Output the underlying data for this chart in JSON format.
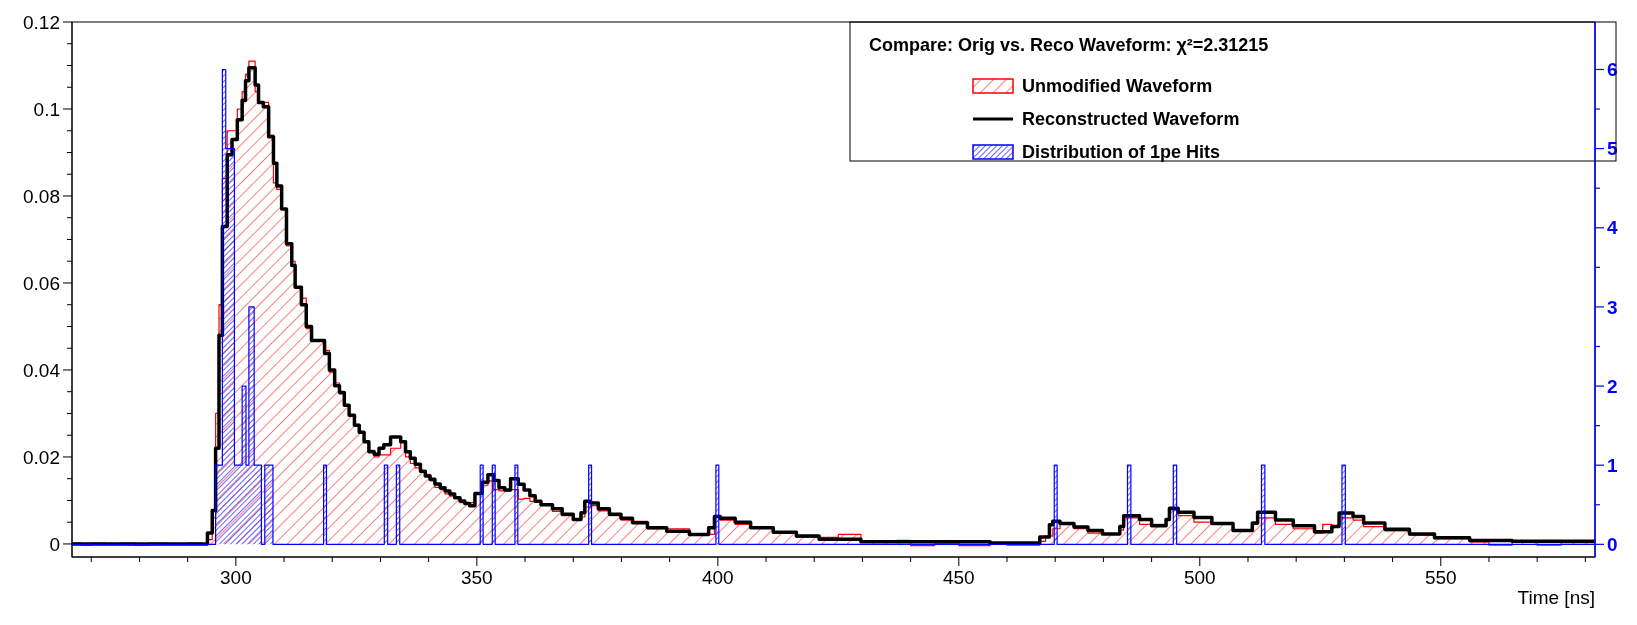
{
  "chart_data": {
    "type": "step",
    "xlabel": "Time [ns]",
    "legend_title": "Compare: Orig vs. Reco Waveform: χ²=2.31215",
    "legend": "top right",
    "xlim": [
      266,
      582
    ],
    "ylim": [
      -0.003,
      0.12
    ],
    "y2lim": [
      -0.16,
      6.6
    ],
    "xticks": [
      {
        "value": 270,
        "label": null
      },
      {
        "value": 280,
        "label": null
      },
      {
        "value": 290,
        "label": null
      },
      300,
      {
        "value": 310,
        "label": null
      },
      {
        "value": 320,
        "label": null
      },
      {
        "value": 330,
        "label": null
      },
      {
        "value": 340,
        "label": null
      },
      350,
      {
        "value": 360,
        "label": null
      },
      {
        "value": 370,
        "label": null
      },
      {
        "value": 380,
        "label": null
      },
      {
        "value": 390,
        "label": null
      },
      400,
      {
        "value": 410,
        "label": null
      },
      {
        "value": 420,
        "label": null
      },
      {
        "value": 430,
        "label": null
      },
      {
        "value": 440,
        "label": null
      },
      450,
      {
        "value": 460,
        "label": null
      },
      {
        "value": 470,
        "label": null
      },
      {
        "value": 480,
        "label": null
      },
      {
        "value": 490,
        "label": null
      },
      500,
      {
        "value": 510,
        "label": null
      },
      {
        "value": 520,
        "label": null
      },
      {
        "value": 530,
        "label": null
      },
      {
        "value": 540,
        "label": null
      },
      550,
      {
        "value": 560,
        "label": null
      },
      {
        "value": 570,
        "label": null
      },
      {
        "value": 580,
        "label": null
      }
    ],
    "yticks": [
      0,
      {
        "value": 0.005,
        "label": null
      },
      {
        "value": 0.01,
        "label": null
      },
      {
        "value": 0.015,
        "label": null
      },
      0.02,
      {
        "value": 0.025,
        "label": null
      },
      {
        "value": 0.03,
        "label": null
      },
      {
        "value": 0.035,
        "label": null
      },
      0.04,
      {
        "value": 0.045,
        "label": null
      },
      {
        "value": 0.05,
        "label": null
      },
      {
        "value": 0.055,
        "label": null
      },
      0.06,
      {
        "value": 0.065,
        "label": null
      },
      {
        "value": 0.07,
        "label": null
      },
      {
        "value": 0.075,
        "label": null
      },
      0.08,
      {
        "value": 0.085,
        "label": null
      },
      {
        "value": 0.09,
        "label": null
      },
      {
        "value": 0.095,
        "label": null
      },
      0.1,
      {
        "value": 0.105,
        "label": null
      },
      {
        "value": 0.11,
        "label": null
      },
      {
        "value": 0.115,
        "label": null
      },
      0.12
    ],
    "y2ticks": [
      0,
      {
        "value": 0.5,
        "label": null
      },
      1,
      {
        "value": 1.5,
        "label": null
      },
      2,
      {
        "value": 2.5,
        "label": null
      },
      3,
      {
        "value": 3.5,
        "label": null
      },
      4,
      {
        "value": 4.5,
        "label": null
      },
      5,
      {
        "value": 5.5,
        "label": null
      },
      6
    ],
    "series": [
      {
        "name": "Unmodified Waveform",
        "type": "area",
        "color": "#ff0000",
        "x": [
          266,
          268,
          270,
          273,
          276,
          279,
          282,
          286,
          290,
          293,
          294.1,
          295.1,
          295.8,
          296.5,
          297.2,
          298.2,
          299.2,
          300.3,
          301.3,
          302.0,
          302.7,
          304.0,
          304.7,
          305.7,
          306.8,
          307.8,
          308.5,
          309.5,
          310.5,
          311.6,
          312.3,
          313.6,
          314.6,
          315.7,
          318.4,
          319.4,
          320.5,
          321.5,
          322.5,
          323.5,
          324.6,
          325.6,
          326.6,
          327.6,
          328.7,
          329.7,
          330.7,
          332.1,
          334.2,
          335.2,
          336.2,
          337.2,
          338.3,
          339.3,
          340.3,
          341.3,
          342.4,
          343.4,
          344.4,
          345.4,
          346.5,
          347.5,
          348.5,
          349.6,
          351.1,
          352.3,
          353.5,
          354.6,
          357.0,
          358.6,
          359.8,
          361.0,
          363.3,
          365.7,
          367.7,
          370.0,
          371.6,
          372.4,
          373.6,
          375.2,
          377.5,
          379.9,
          382.3,
          385.4,
          389.4,
          394.1,
          398.1,
          399.3,
          400.5,
          403.6,
          406.8,
          411.5,
          416.3,
          421.0,
          425.0,
          429.7,
          437.0,
          440.0,
          445.0,
          450.0,
          456.5,
          460.0,
          466.8,
          468.0,
          469.5,
          471.0,
          473.9,
          476.8,
          479.8,
          483.4,
          484.2,
          487.5,
          490.0,
          493.0,
          493.7,
          495.5,
          498.8,
          502.5,
          506.9,
          510.9,
          512.0,
          515.7,
          519.4,
          523.8,
          525.5,
          527.4,
          528.9,
          531.8,
          534.0,
          538.4,
          543.5,
          548.7,
          556.0,
          560.0,
          564.8,
          570.0,
          575.0,
          582
        ],
        "values": [
          0.0002,
          -0.0002,
          0.0002,
          0,
          0.0002,
          -0.0002,
          0.0002,
          0,
          0.0002,
          0,
          0.001,
          0.006,
          0.03,
          0.055,
          0.084,
          0.095,
          0.095,
          0.1,
          0.104,
          0.108,
          0.111,
          0.104,
          0.1015,
          0.1015,
          0.094,
          0.083,
          0.0815,
          0.077,
          0.0685,
          0.065,
          0.059,
          0.0565,
          0.0495,
          0.047,
          0.0445,
          0.0395,
          0.037,
          0.0345,
          0.032,
          0.0295,
          0.0275,
          0.0255,
          0.0235,
          0.0215,
          0.02,
          0.0205,
          0.0205,
          0.022,
          0.0235,
          0.02,
          0.0185,
          0.0175,
          0.0165,
          0.016,
          0.0145,
          0.013,
          0.0125,
          0.0115,
          0.011,
          0.0105,
          0.0095,
          0.0095,
          0.0095,
          0.0115,
          0.0135,
          0.0145,
          0.0125,
          0.0122,
          0.0125,
          0.0103,
          0.0105,
          0.0098,
          0.009,
          0.0075,
          0.0065,
          0.0055,
          0.0062,
          0.0085,
          0.0088,
          0.0076,
          0.0065,
          0.0055,
          0.0052,
          0.0035,
          0.0035,
          0.0022,
          0.0022,
          0.0065,
          0.0055,
          0.0045,
          0.004,
          0.0025,
          0.0015,
          0.0015,
          0.0022,
          0.0006,
          0.0008,
          -0.0004,
          0.0002,
          -0.0004,
          0.0003,
          -0.0003,
          0.0006,
          0.0018,
          0.0035,
          0.0045,
          0.0035,
          0.0025,
          0.0022,
          0.0032,
          0.006,
          0.0045,
          0.0045,
          0.0055,
          0.0078,
          0.0065,
          0.005,
          0.0045,
          0.003,
          0.0045,
          0.006,
          0.0045,
          0.0035,
          0.0025,
          0.0045,
          0.004,
          0.006,
          0.0055,
          0.004,
          0.003,
          0.002,
          0.0012,
          0.0005,
          -0.0003,
          0.0004,
          -0.0003,
          0.0003,
          0.0003
        ]
      },
      {
        "name": "Reconstructed Waveform",
        "color": "#000000",
        "x": [
          266,
          294.1,
          295.1,
          295.8,
          296.5,
          297.2,
          298.2,
          299.2,
          300.3,
          301.3,
          302.0,
          302.7,
          304.0,
          304.7,
          305.7,
          306.8,
          307.8,
          308.5,
          309.5,
          310.5,
          311.6,
          312.3,
          313.6,
          314.6,
          315.7,
          318.4,
          319.4,
          320.5,
          321.5,
          322.5,
          323.5,
          324.6,
          325.6,
          326.6,
          327.6,
          328.7,
          329.7,
          330.7,
          332.1,
          334.2,
          335.2,
          336.2,
          337.2,
          338.3,
          339.3,
          340.3,
          341.3,
          342.4,
          343.4,
          344.4,
          345.4,
          346.5,
          347.5,
          348.5,
          349.6,
          351.1,
          352.3,
          353.5,
          354.6,
          355.8,
          357.0,
          358.6,
          359.8,
          361.0,
          362.1,
          363.3,
          365.7,
          367.7,
          370.0,
          371.6,
          372.4,
          373.6,
          375.2,
          377.5,
          379.9,
          382.3,
          385.4,
          389.4,
          394.1,
          398.1,
          399.3,
          400.5,
          403.6,
          406.8,
          411.5,
          416.3,
          421.0,
          429.7,
          456.5,
          466.8,
          468.8,
          469.5,
          471.0,
          473.9,
          476.8,
          479.8,
          483.4,
          484.2,
          487.5,
          490.0,
          493.0,
          493.7,
          495.5,
          498.8,
          502.5,
          506.9,
          510.9,
          512.0,
          515.7,
          519.4,
          523.8,
          527.4,
          528.9,
          531.8,
          534.0,
          538.4,
          543.5,
          548.7,
          556.0,
          564.8,
          582
        ],
        "values": [
          0,
          0.0025,
          0.0077,
          0.022,
          0.048,
          0.073,
          0.0895,
          0.093,
          0.0975,
          0.102,
          0.1065,
          0.1095,
          0.1055,
          0.1015,
          0.1005,
          0.0936,
          0.0875,
          0.0823,
          0.077,
          0.069,
          0.064,
          0.059,
          0.055,
          0.05,
          0.0468,
          0.0438,
          0.04,
          0.0364,
          0.0348,
          0.0319,
          0.0296,
          0.0273,
          0.0257,
          0.0235,
          0.0212,
          0.0206,
          0.022,
          0.0228,
          0.0246,
          0.0235,
          0.0212,
          0.0197,
          0.0183,
          0.0167,
          0.0156,
          0.0149,
          0.0138,
          0.0129,
          0.0122,
          0.0115,
          0.0106,
          0.0099,
          0.0093,
          0.0088,
          0.0116,
          0.0142,
          0.0159,
          0.0146,
          0.0129,
          0.0124,
          0.015,
          0.0137,
          0.0124,
          0.0111,
          0.0098,
          0.009,
          0.0081,
          0.0068,
          0.0056,
          0.0072,
          0.0098,
          0.0094,
          0.0081,
          0.0068,
          0.0059,
          0.0049,
          0.0037,
          0.0029,
          0.0022,
          0.0037,
          0.0063,
          0.0059,
          0.005,
          0.0037,
          0.0027,
          0.0018,
          0.0011,
          0.0005,
          0.0002,
          0.0016,
          0.0044,
          0.0052,
          0.0047,
          0.0039,
          0.0031,
          0.0023,
          0.004,
          0.0065,
          0.0056,
          0.0042,
          0.0056,
          0.0082,
          0.0073,
          0.0061,
          0.0047,
          0.0031,
          0.0048,
          0.0073,
          0.0055,
          0.0042,
          0.0028,
          0.004,
          0.0071,
          0.0063,
          0.0048,
          0.0034,
          0.0023,
          0.0014,
          0.0008,
          0.0006,
          0.0006
        ]
      },
      {
        "name": "Distribution of 1pe Hits",
        "type": "area",
        "axis": "y2",
        "color": "#0000ff",
        "x": [
          266,
          295.8,
          297.2,
          297.9,
          299.7,
          301.3,
          302.1,
          302.7,
          303.8,
          305.3,
          306.0,
          307.7,
          318.2,
          318.8,
          330.8,
          331.5,
          333.3,
          334.0,
          350.7,
          351.3,
          353.2,
          353.8,
          357.9,
          358.5,
          373.2,
          373.8,
          399.6,
          400.2,
          469.8,
          470.4,
          485.0,
          485.7,
          494.5,
          495.2,
          512.8,
          513.5,
          529.5,
          530.2,
          582
        ],
        "values": [
          0,
          1,
          6,
          5,
          1,
          2,
          1,
          3,
          1,
          0,
          1,
          0,
          1,
          0,
          1,
          0,
          1,
          0,
          1,
          0,
          1,
          0,
          1,
          0,
          1,
          0,
          1,
          0,
          1,
          0,
          1,
          0,
          1,
          0,
          1,
          0,
          1,
          0,
          0
        ]
      }
    ]
  }
}
